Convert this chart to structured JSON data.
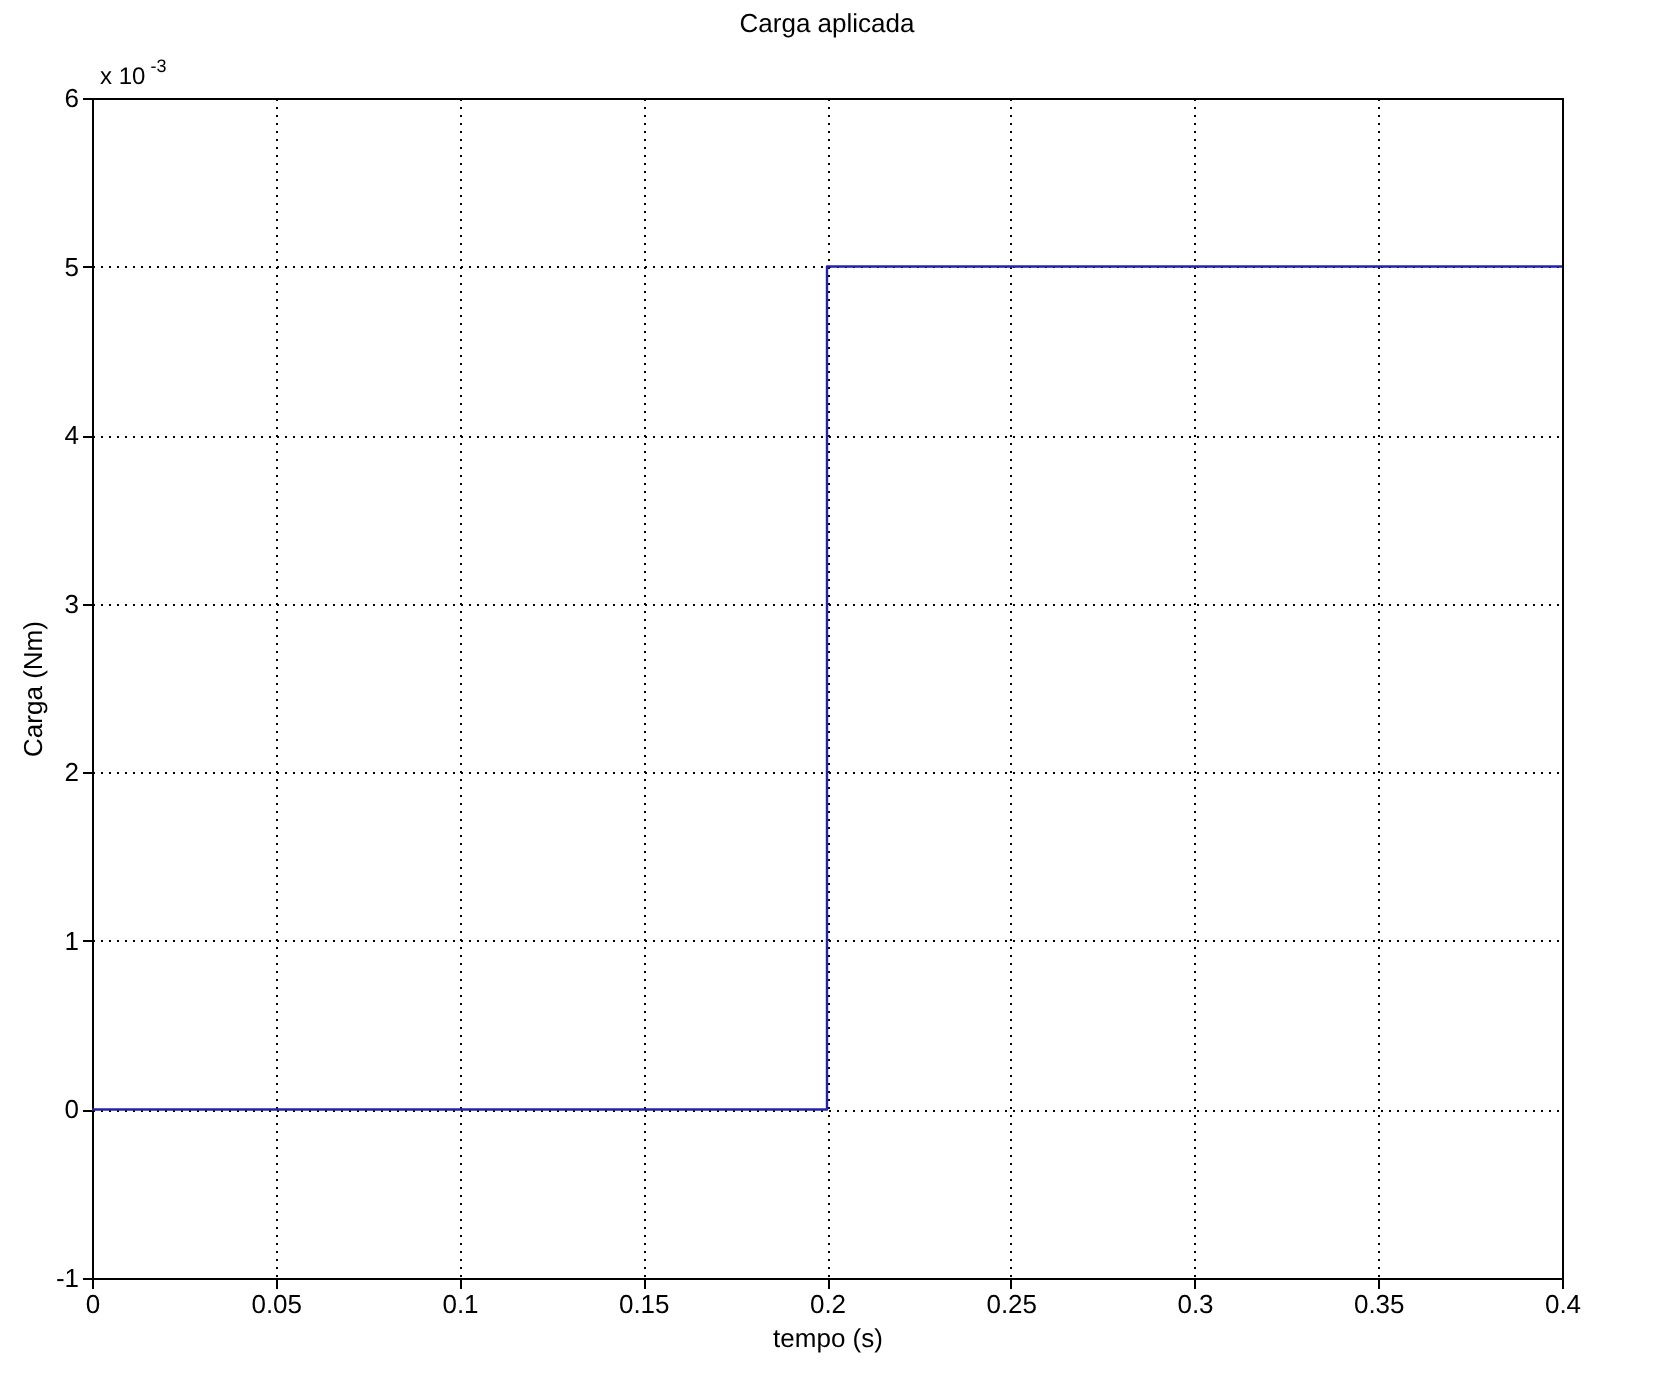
{
  "chart_data": {
    "type": "line",
    "title": "Carga aplicada",
    "xlabel": "tempo (s)",
    "ylabel": "Carga (Nm)",
    "annotations": [
      "x 10$^{-3}$"
    ],
    "x": [
      0,
      0.2,
      0.2,
      0.4
    ],
    "series": [
      {
        "color": "#2424a8",
        "values": [
          0,
          0,
          5,
          5
        ]
      }
    ],
    "xlim": [
      0,
      0.4
    ],
    "xticks": [
      0,
      0.05,
      0.1,
      0.15,
      0.2,
      0.25,
      0.3,
      0.35,
      0.4
    ],
    "ylim": [
      -1,
      6
    ],
    "yticks": [
      -1,
      0,
      1,
      2,
      3,
      4,
      5,
      6
    ],
    "grid": true
  }
}
